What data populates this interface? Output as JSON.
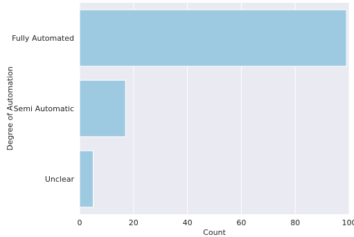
{
  "chart_data": {
    "type": "bar",
    "orientation": "horizontal",
    "title": "",
    "xlabel": "Count",
    "ylabel": "Degree of Automation",
    "categories": [
      "Fully Automated",
      "Semi Automatic",
      "Unclear"
    ],
    "values": [
      99,
      17,
      5
    ],
    "xlim": [
      0,
      100
    ],
    "xticks": [
      0,
      20,
      40,
      60,
      80,
      100
    ],
    "grid": true,
    "legend": "none",
    "colors": {
      "bar": "#9ecae1",
      "plot_background": "#eaeaf2",
      "grid": "#ffffff"
    }
  }
}
